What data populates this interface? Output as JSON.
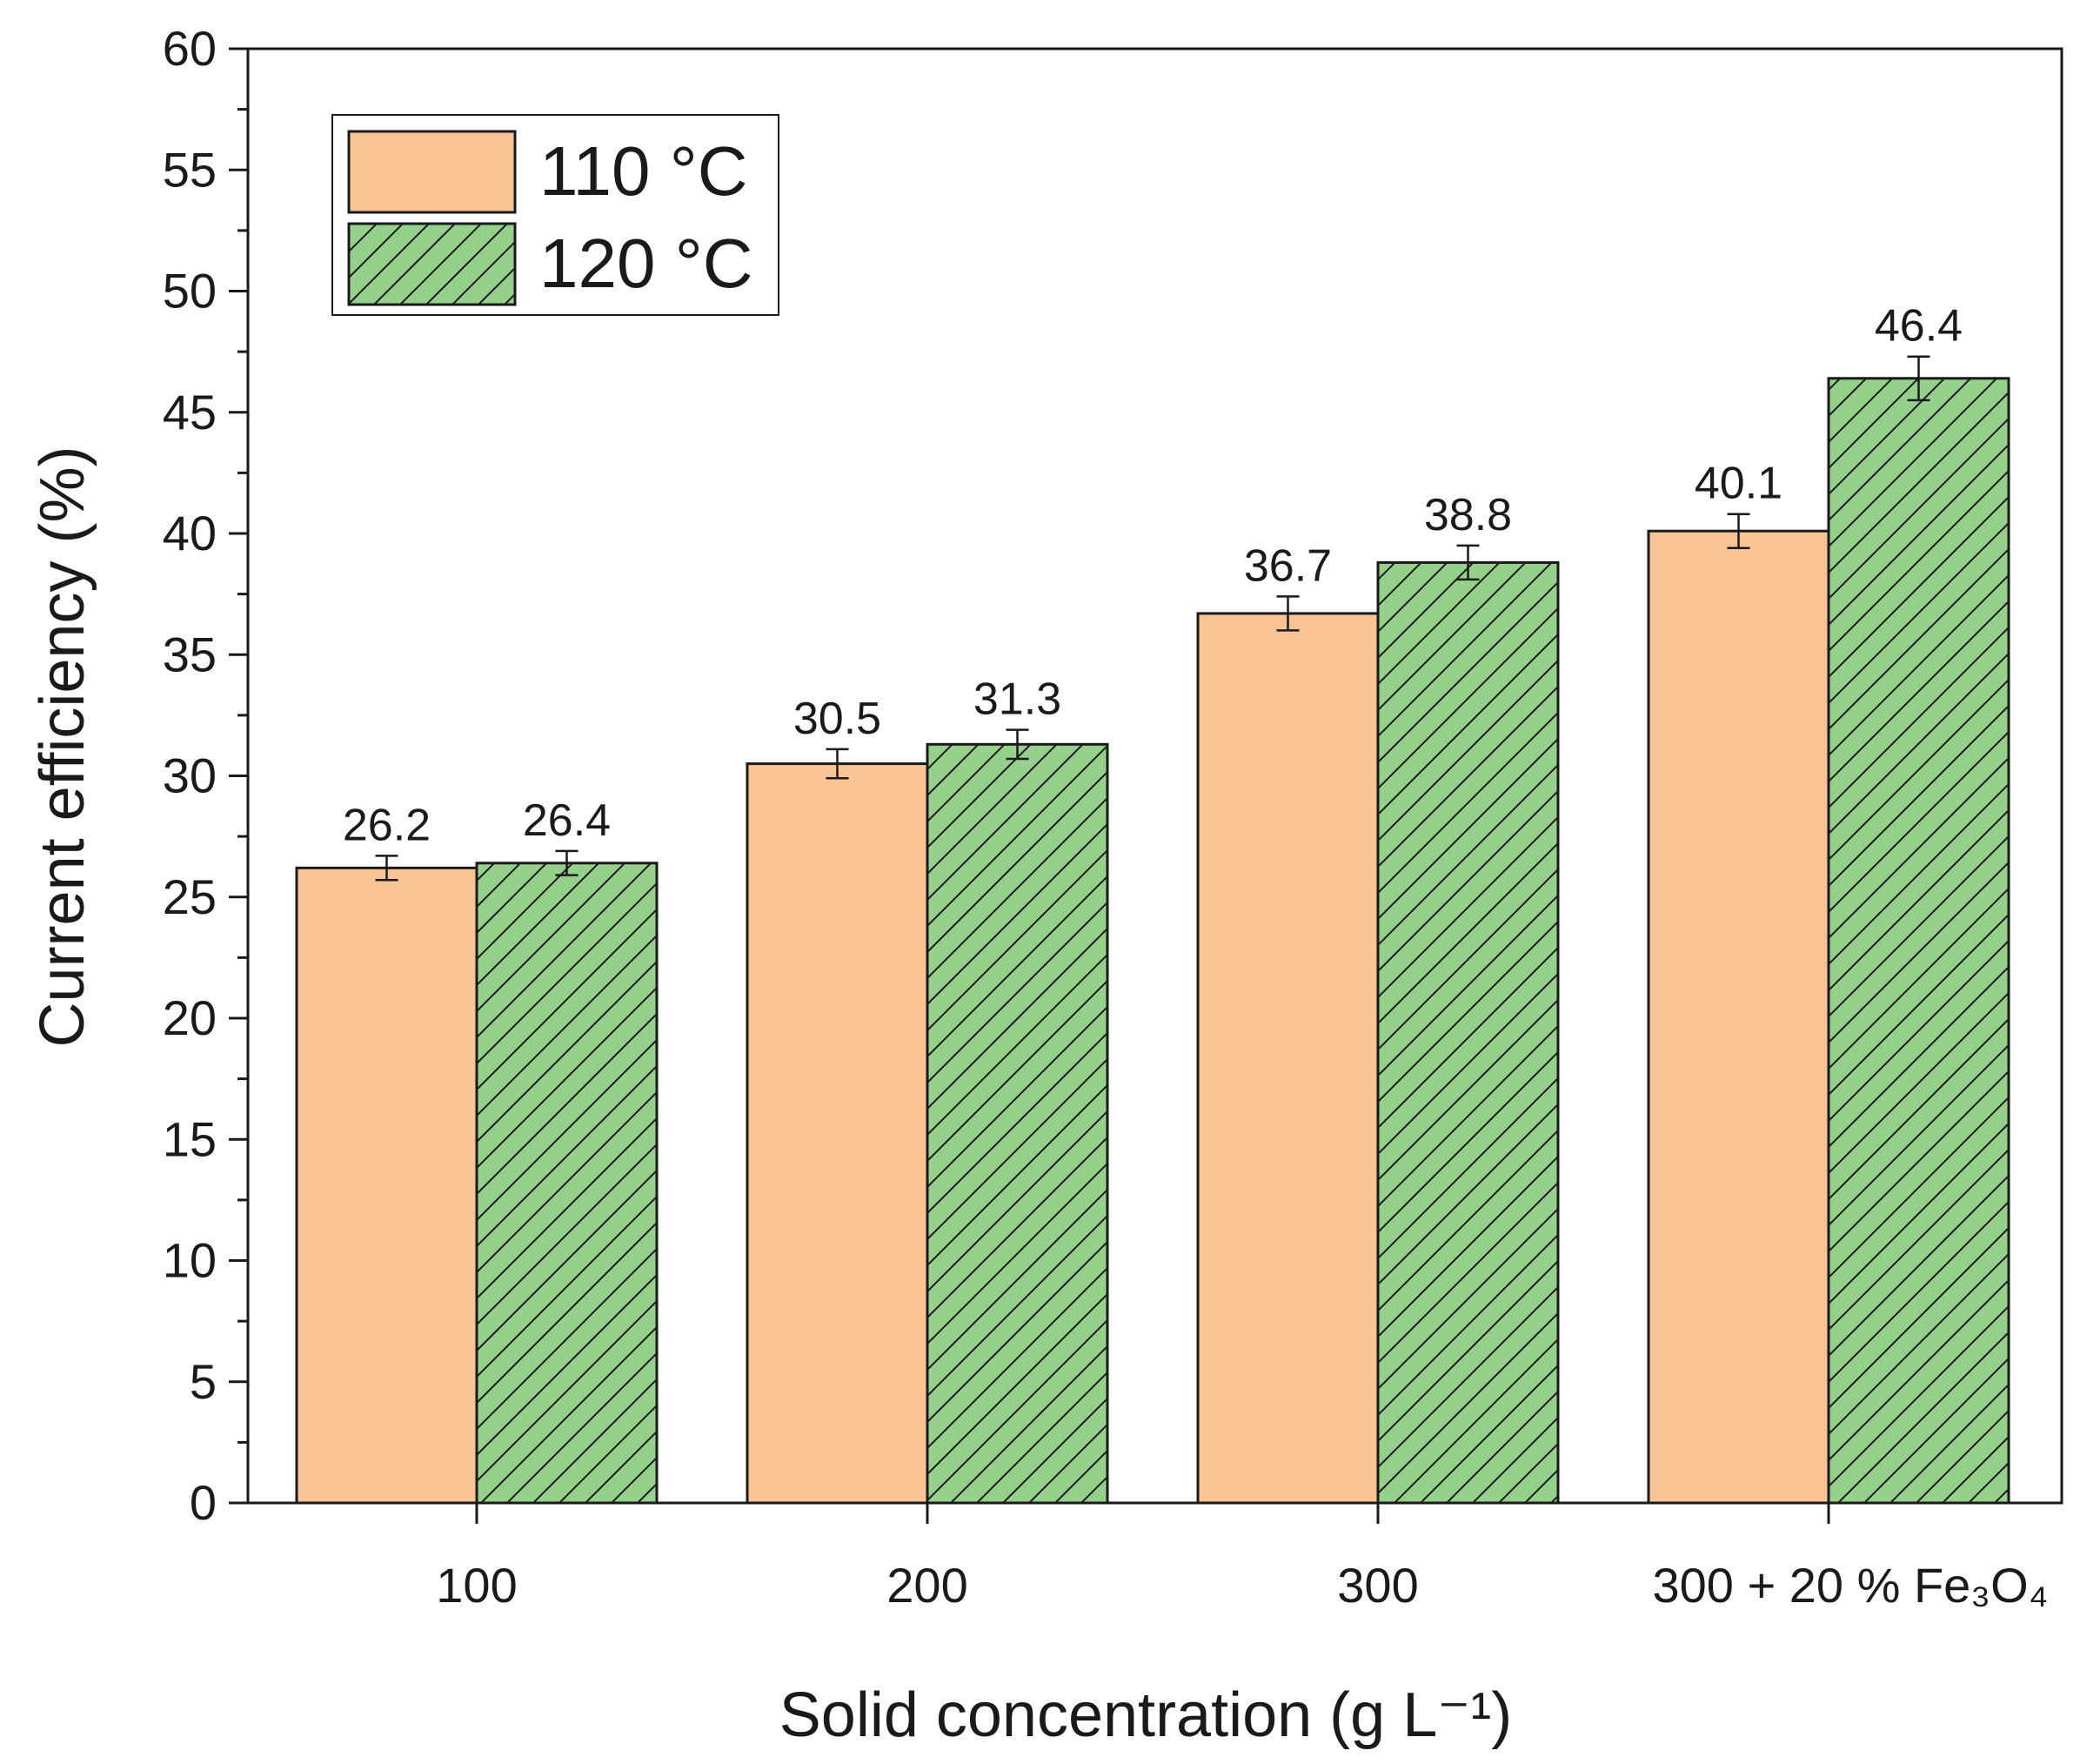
{
  "chart_data": {
    "type": "bar",
    "xlabel": "Solid concentration (g L⁻¹)",
    "ylabel": "Current efficiency (%)",
    "ylim": [
      0,
      60
    ],
    "yticks": [
      0,
      5,
      10,
      15,
      20,
      25,
      30,
      35,
      40,
      45,
      50,
      55,
      60
    ],
    "categories": [
      "100",
      "200",
      "300",
      "300 + 20 % Fe₃O₄"
    ],
    "series": [
      {
        "name": "110 °C",
        "values": [
          26.2,
          30.5,
          36.7,
          40.1
        ],
        "labels": [
          "26.2",
          "30.5",
          "36.7",
          "40.1"
        ],
        "errors": [
          0.5,
          0.6,
          0.7,
          0.7
        ],
        "color": "#f9c393",
        "pattern": "solid"
      },
      {
        "name": "120 °C",
        "values": [
          26.4,
          31.3,
          38.8,
          46.4
        ],
        "labels": [
          "26.4",
          "31.3",
          "38.8",
          "46.4"
        ],
        "errors": [
          0.5,
          0.6,
          0.7,
          0.9
        ],
        "color": "#95d18b",
        "pattern": "hatched"
      }
    ],
    "legend_position": "top-left",
    "grid": false
  }
}
